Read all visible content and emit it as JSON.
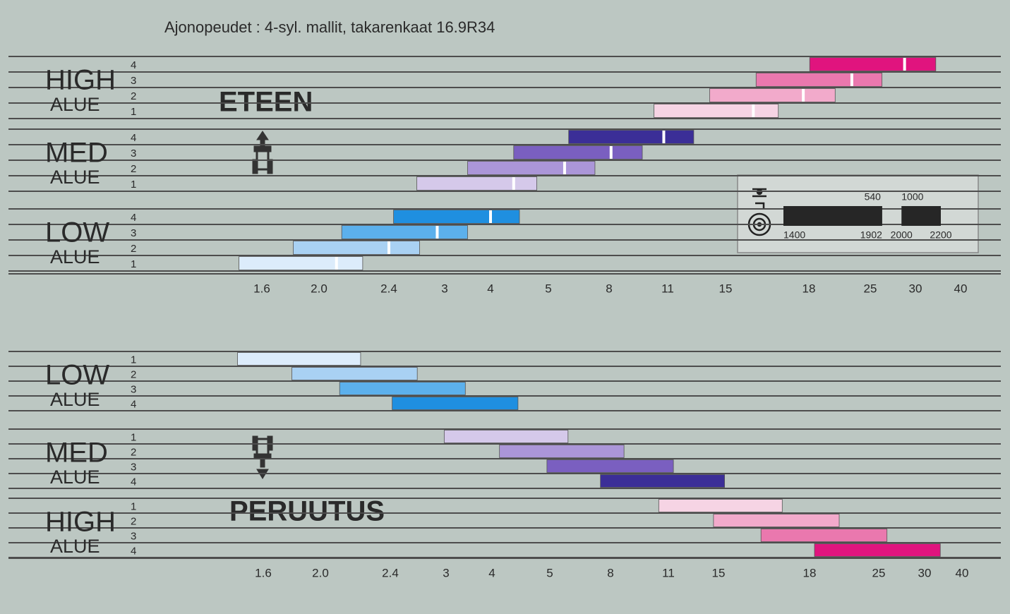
{
  "title": "Ajonopeudet : 4-syl. mallit, takarenkaat 16.9R34",
  "chart_data": [
    {
      "type": "range",
      "title": "ETEEN",
      "xticks": [
        1.6,
        {
          "value": 2,
          "label": "2.0"
        },
        2.4,
        3,
        4,
        5,
        8,
        11,
        15,
        18,
        25,
        30,
        40
      ],
      "groups": [
        {
          "name": "HIGH",
          "subtitle": "ALUE",
          "labels": [
            "4",
            "3",
            "2",
            "1"
          ],
          "colors": [
            "#e0147e",
            "#ea78ae",
            "#f2aacb",
            "#f6d4e4"
          ],
          "start": [
            18.1,
            16.1,
            13.9,
            10.3
          ],
          "marker": [
            28.8,
            22.9,
            17.8,
            16.0
          ],
          "end": [
            34.5,
            26.3,
            21.0,
            16.9
          ]
        },
        {
          "name": "MED",
          "subtitle": "ALUE",
          "labels": [
            "4",
            "3",
            "2",
            "1"
          ],
          "colors": [
            "#3b2e97",
            "#7a5fc0",
            "#ab96d8",
            "#d5c9ea"
          ],
          "start": [
            6.0,
            4.4,
            3.5,
            2.7
          ],
          "marker": [
            10.8,
            8.1,
            5.8,
            4.4
          ],
          "end": [
            12.8,
            9.7,
            7.3,
            4.8
          ]
        },
        {
          "name": "LOW",
          "subtitle": "ALUE",
          "labels": [
            "4",
            "3",
            "2",
            "1"
          ],
          "colors": [
            "#1f8fe0",
            "#5cb0ec",
            "#a9d1f3",
            "#dcecfb"
          ],
          "start": [
            2.45,
            2.13,
            1.82,
            1.44
          ],
          "marker": [
            4.0,
            2.92,
            2.4,
            2.1
          ],
          "end": [
            4.5,
            3.5,
            2.73,
            2.25
          ]
        }
      ]
    },
    {
      "type": "range",
      "title": "PERUUTUS",
      "xticks": [
        1.6,
        {
          "value": 2,
          "label": "2.0"
        },
        2.4,
        3,
        4,
        5,
        8,
        11,
        15,
        18,
        25,
        30,
        40
      ],
      "groups": [
        {
          "name": "LOW",
          "subtitle": "ALUE",
          "labels": [
            "1",
            "2",
            "3",
            "4"
          ],
          "colors": [
            "#dcecfb",
            "#a9d1f3",
            "#5cb0ec",
            "#1f8fe0"
          ],
          "start": [
            1.42,
            1.8,
            2.11,
            2.42
          ],
          "end": [
            2.23,
            2.69,
            3.42,
            4.45
          ]
        },
        {
          "name": "MED",
          "subtitle": "ALUE",
          "labels": [
            "1",
            "2",
            "3",
            "4"
          ],
          "colors": [
            "#d5c9ea",
            "#ab96d8",
            "#7a5fc0",
            "#3b2e97"
          ],
          "start": [
            2.98,
            4.13,
            4.95,
            7.5
          ],
          "end": [
            5.9,
            8.7,
            11.4,
            15.2
          ]
        },
        {
          "name": "HIGH",
          "subtitle": "ALUE",
          "labels": [
            "1",
            "2",
            "3",
            "4"
          ],
          "colors": [
            "#f6d4e4",
            "#f2aacb",
            "#ea78ae",
            "#e0147e"
          ],
          "start": [
            10.5,
            14.6,
            16.4,
            18.5
          ],
          "end": [
            17.1,
            21.0,
            25.9,
            34.2
          ]
        }
      ]
    }
  ],
  "rpm_legend": {
    "scale": [
      1400,
      2200
    ],
    "ticks": [
      1400,
      1902,
      2000,
      2200
    ],
    "pto": [
      540,
      1000
    ]
  }
}
